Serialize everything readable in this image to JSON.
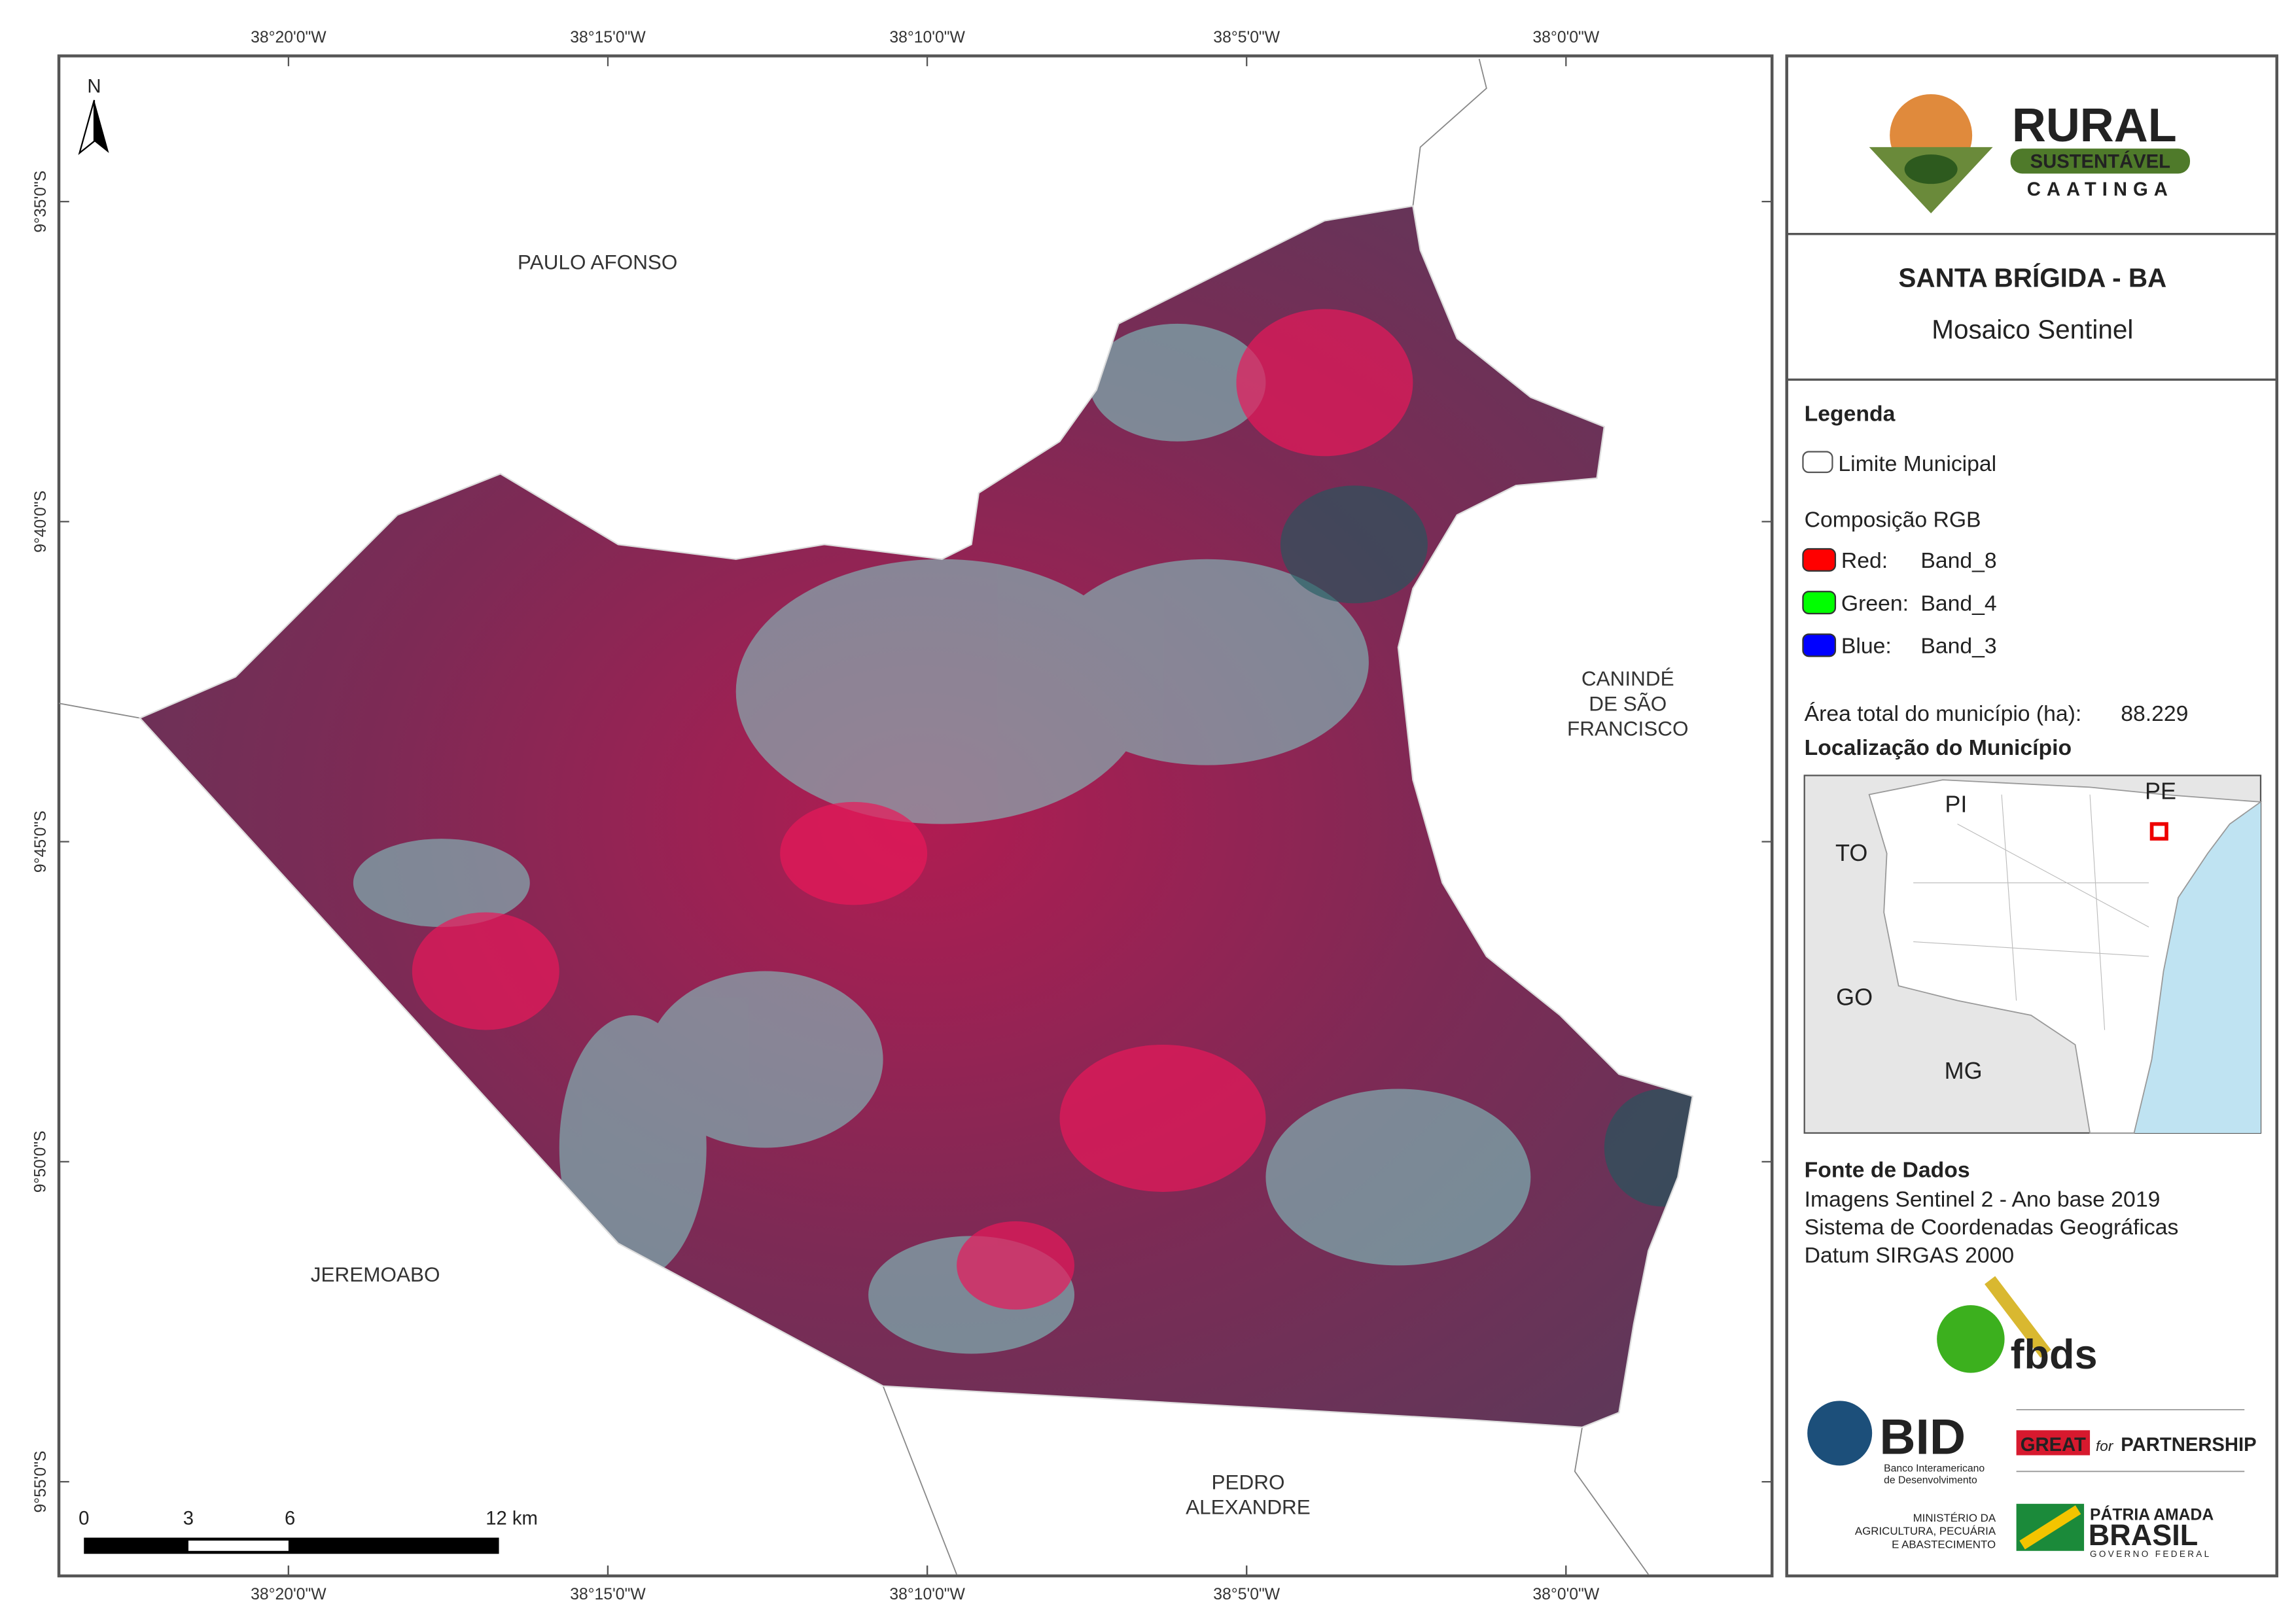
{
  "map": {
    "lon_ticks": [
      "38°20'0\"W",
      "38°15'0\"W",
      "38°10'0\"W",
      "38°5'0\"W",
      "38°0'0\"W"
    ],
    "lat_ticks": [
      "9°35'0\"S",
      "9°40'0\"S",
      "9°45'0\"S",
      "9°50'0\"S",
      "9°55'0\"S"
    ],
    "north": "N",
    "places": {
      "paulo_afonso": [
        "PAULO AFONSO"
      ],
      "caninde": [
        "CANINDÉ",
        "DE SÃO",
        "FRANCISCO"
      ],
      "jeremoabo": [
        "JEREMOABO"
      ],
      "pedro_alexandre": [
        "PEDRO",
        "ALEXANDRE"
      ]
    },
    "scale": [
      "0",
      "3",
      "6",
      "12 km"
    ]
  },
  "logo": {
    "name": "RURAL",
    "band": "SUSTENTÁVEL",
    "region": "CAATINGA"
  },
  "header": {
    "title": "SANTA BRÍGIDA - BA",
    "subtitle": "Mosaico Sentinel"
  },
  "legend": {
    "title": "Legenda",
    "boundary": "Limite Municipal",
    "rgb_title": "Composição RGB",
    "bands": [
      {
        "channel": "Red:",
        "band": "Band_8",
        "color": "#ff0000"
      },
      {
        "channel": "Green:",
        "band": "Band_4",
        "color": "#00ff00"
      },
      {
        "channel": "Blue:",
        "band": "Band_3",
        "color": "#0000ff"
      }
    ],
    "area_label": "Área total do município (ha):",
    "area_value": "88.229",
    "location_title": "Localização do Município"
  },
  "inset": {
    "labels": [
      "PI",
      "PE",
      "TO",
      "GO",
      "MG"
    ]
  },
  "sources": {
    "title": "Fonte de Dados",
    "lines": [
      "Imagens Sentinel 2 - Ano base 2019",
      "Sistema de Coordenadas Geográficas",
      "Datum SIRGAS 2000"
    ]
  },
  "partners": {
    "fbds": "fbds",
    "bid": "BID",
    "bid_full": [
      "Banco Interamericano",
      "de Desenvolvimento"
    ],
    "great": "GREAT",
    "great_for": "for",
    "great_partnership": "PARTNERSHIP",
    "ministry": [
      "MINISTÉRIO DA",
      "AGRICULTURA, PECUÁRIA",
      "E ABASTECIMENTO"
    ],
    "patria": "PÁTRIA AMADA",
    "brasil": "BRASIL",
    "governo": "GOVERNO FEDERAL"
  }
}
